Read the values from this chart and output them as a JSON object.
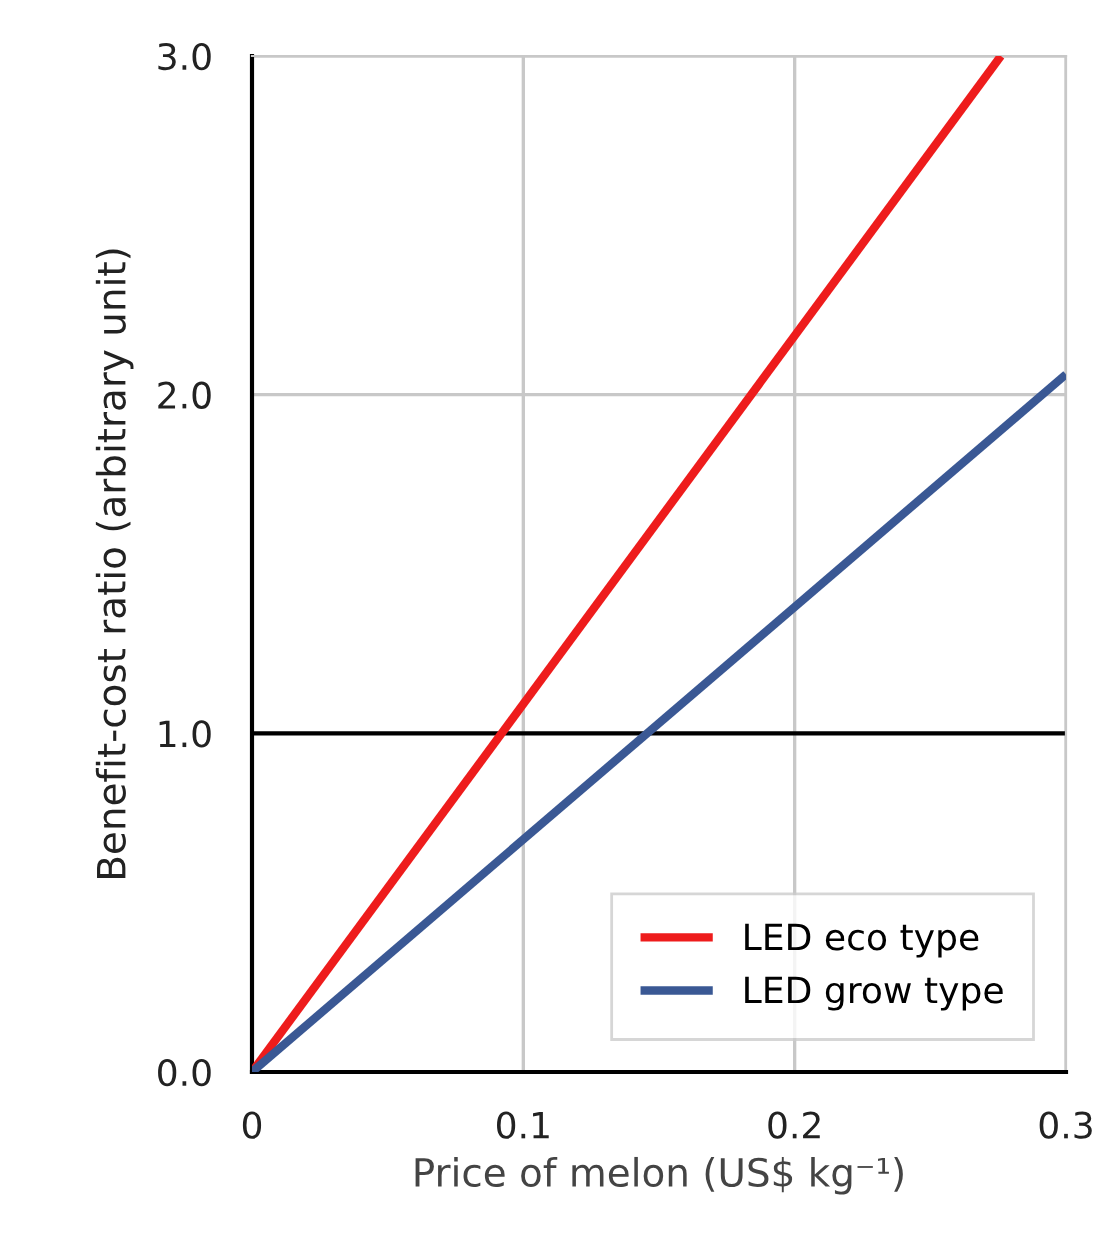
{
  "chart_data": {
    "type": "line",
    "xlabel": "Price of melon (US$ kg⁻¹)",
    "ylabel": "Benefit-cost ratio (arbitrary unit)",
    "series": [
      {
        "name": "LED eco type",
        "color": "#ee1c1c",
        "x": [
          0,
          0.276
        ],
        "values": [
          0,
          3.0
        ]
      },
      {
        "name": "LED grow type",
        "color": "#3a5894",
        "x": [
          0,
          0.3
        ],
        "values": [
          0,
          2.06
        ]
      }
    ],
    "xlim": [
      0,
      0.3
    ],
    "xticks": [
      0,
      0.1,
      0.2,
      0.3
    ],
    "ylim": [
      0,
      3.0
    ],
    "yticks": [
      {
        "value": 0,
        "label": "0.0"
      },
      {
        "value": 1,
        "label": "1.0"
      },
      {
        "value": 2,
        "label": "2.0"
      },
      {
        "value": 3,
        "label": "3.0"
      }
    ],
    "ref_lines": [
      {
        "axis": "y",
        "value": 1,
        "color": "#000000"
      }
    ],
    "grid": true,
    "legend": "bottom right",
    "line_style": "solid",
    "marker": "none"
  }
}
